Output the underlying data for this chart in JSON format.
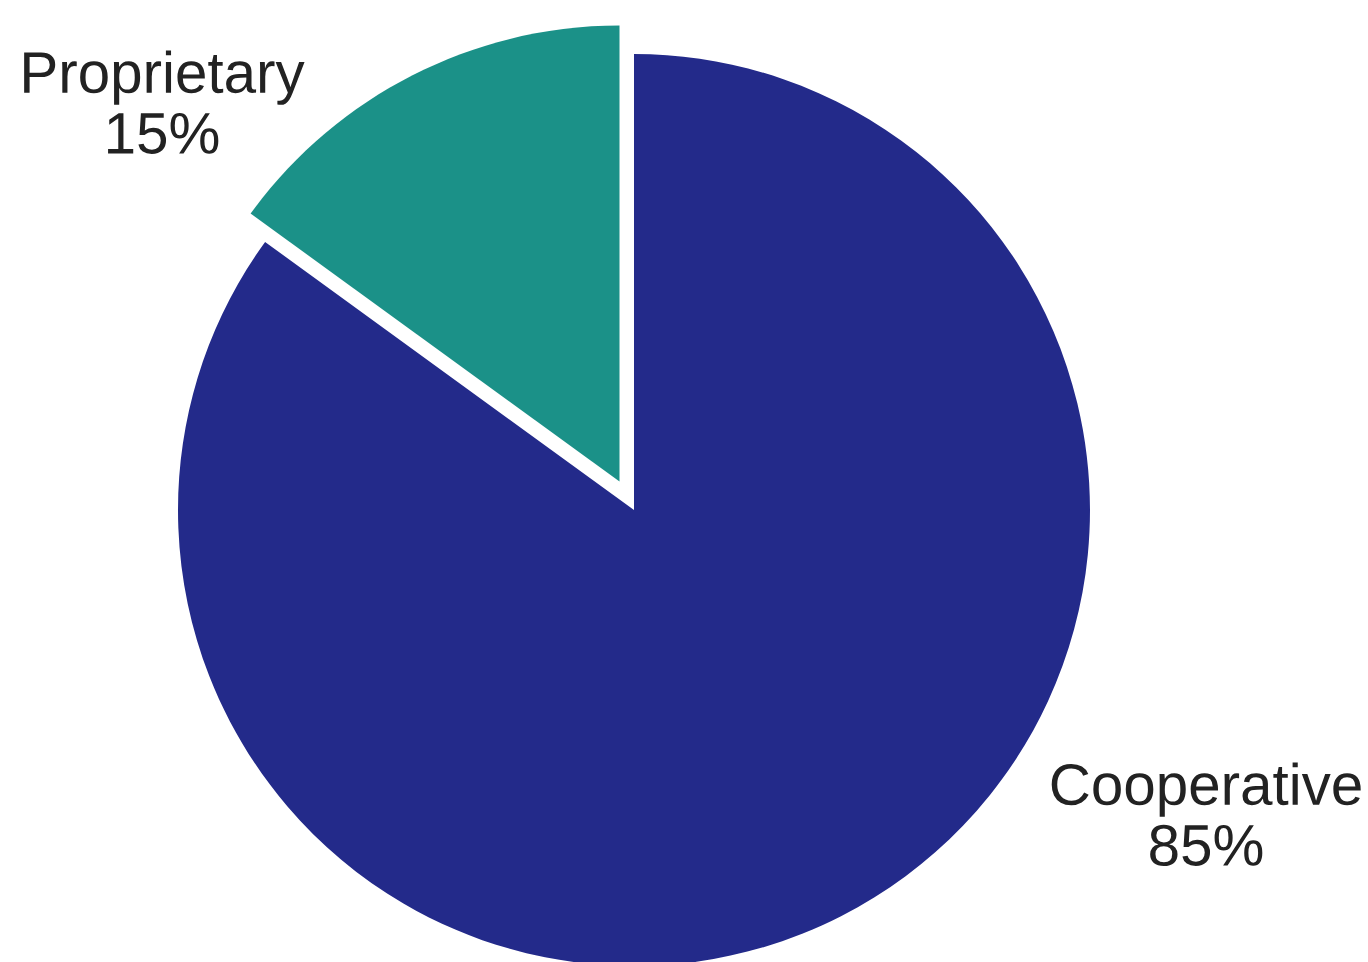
{
  "chart_data": {
    "type": "pie",
    "categories": [
      "Proprietary",
      "Cooperative"
    ],
    "values": [
      15,
      85
    ],
    "value_labels": [
      "15%",
      "85%"
    ],
    "colors": [
      "#1b9188",
      "#232a8a"
    ]
  }
}
